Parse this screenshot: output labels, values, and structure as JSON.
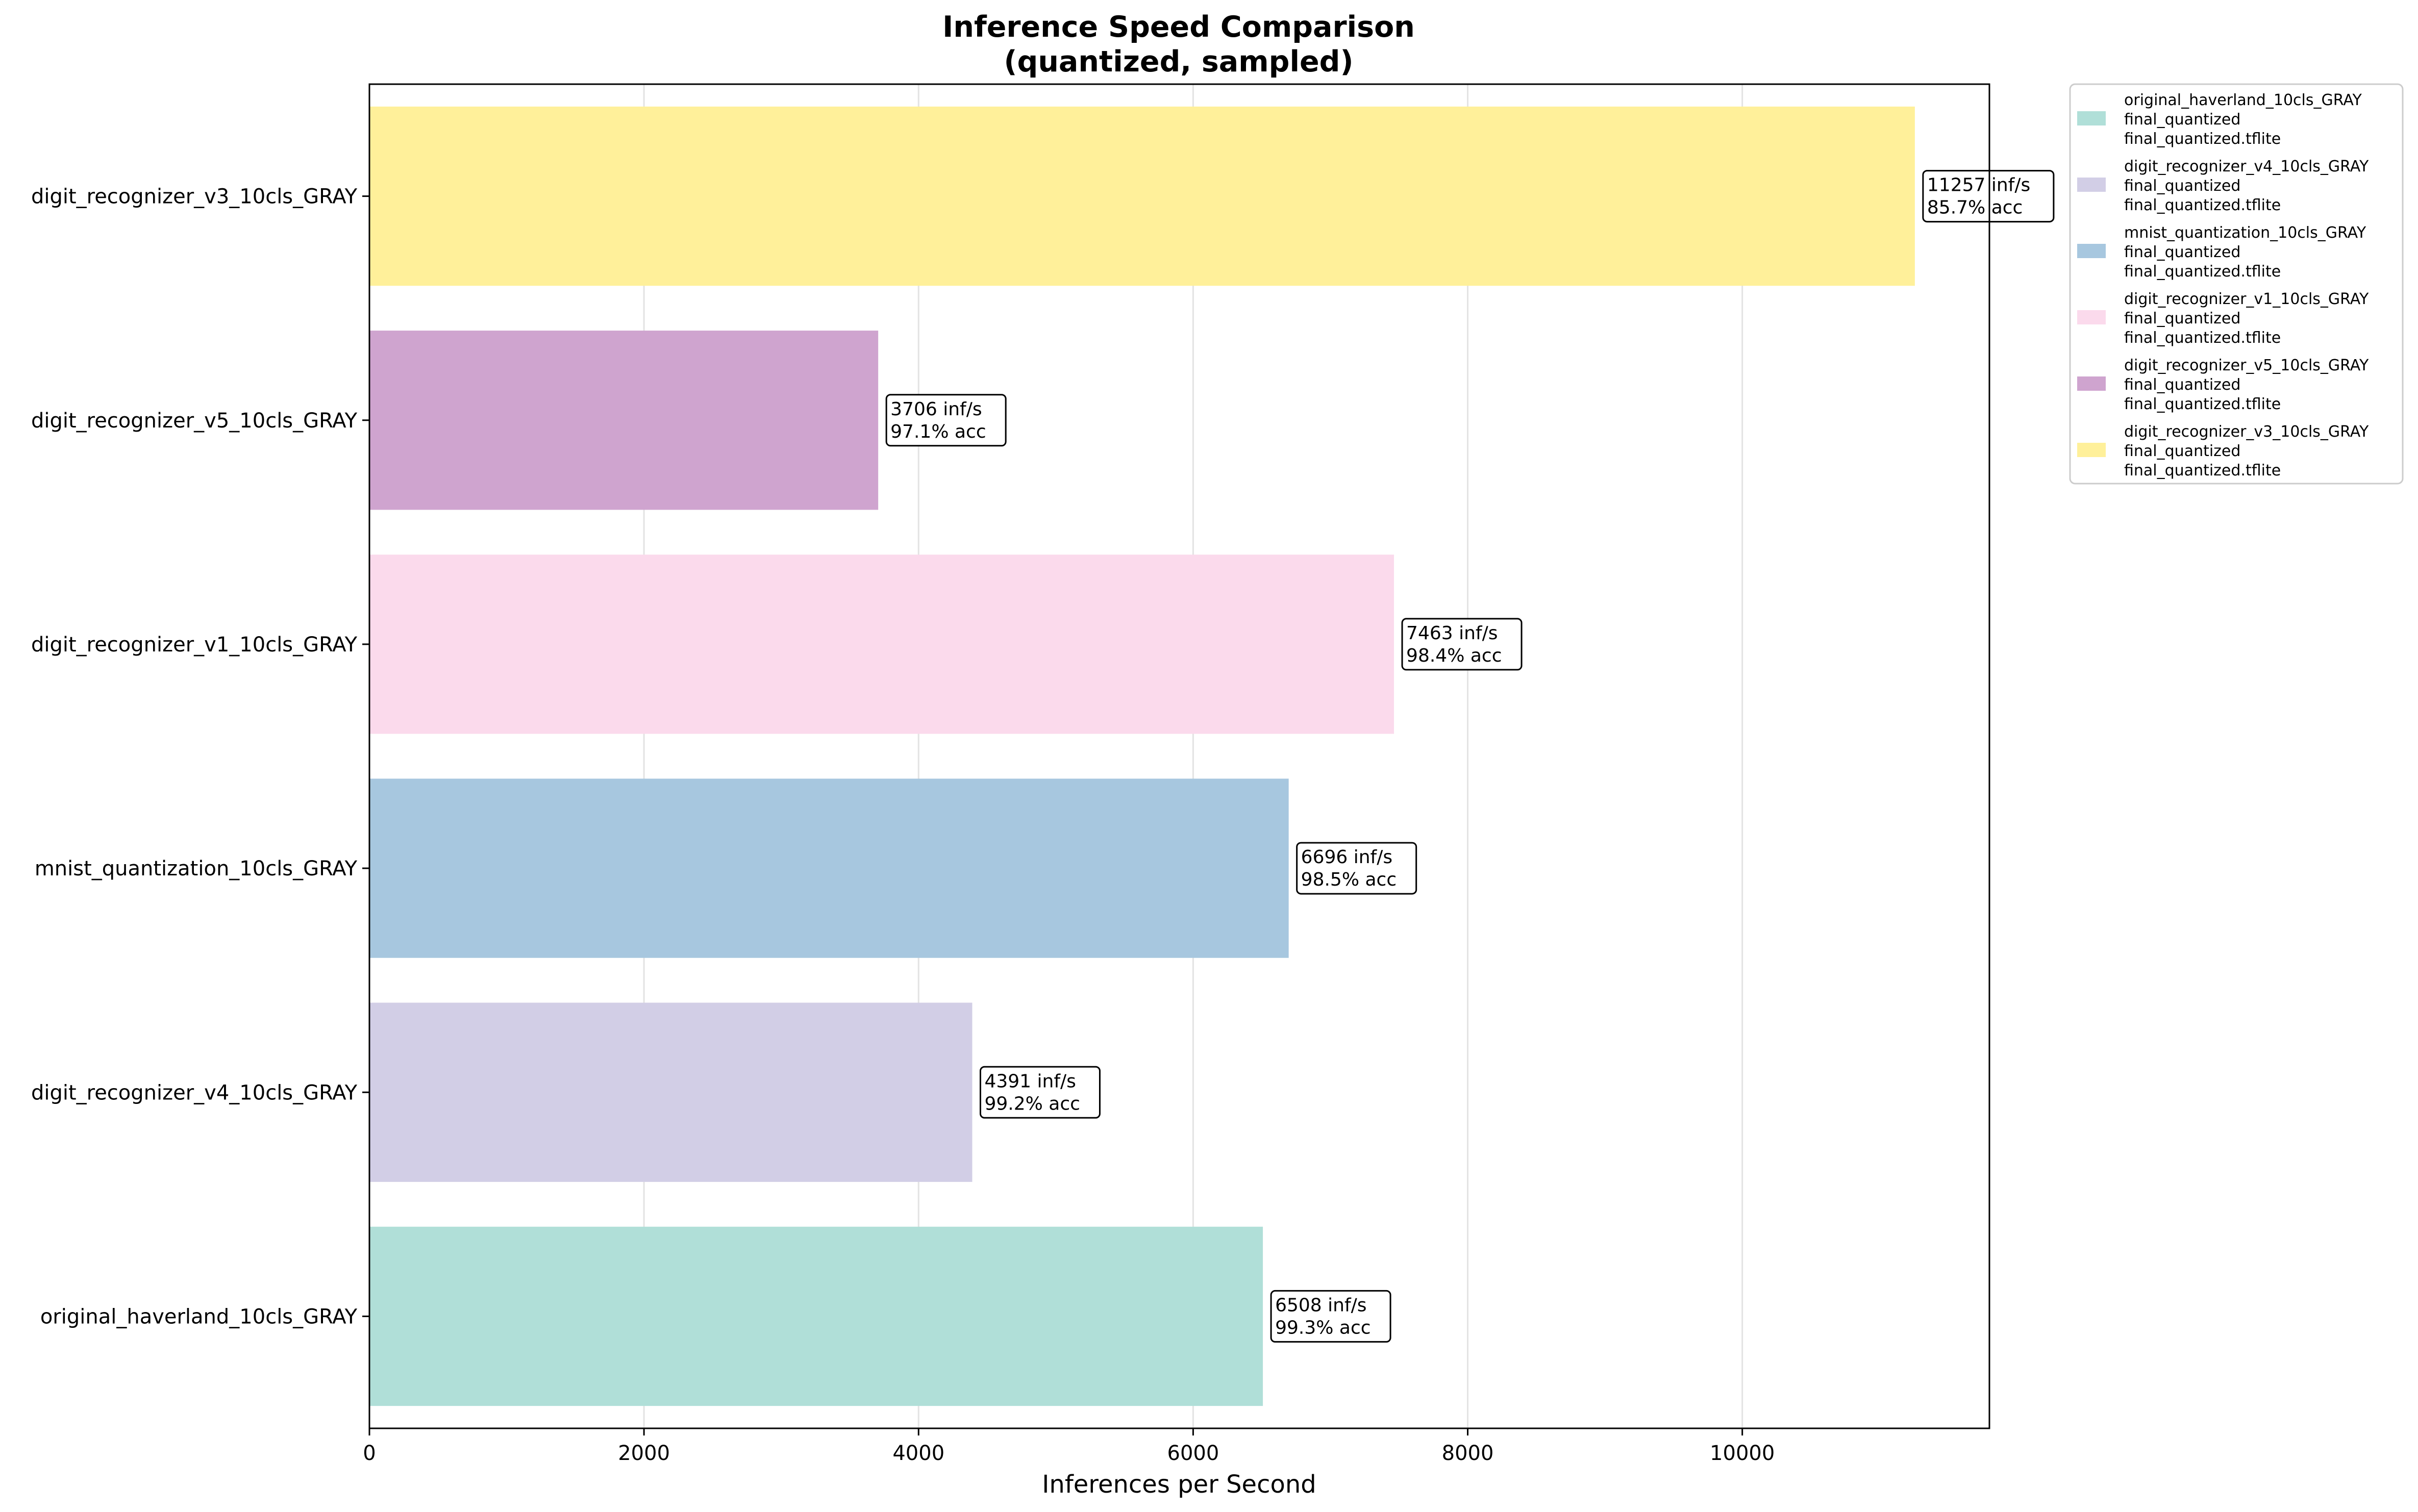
{
  "chart_data": {
    "type": "bar",
    "orientation": "horizontal",
    "title": "Inference Speed Comparison",
    "subtitle": "(quantized, sampled)",
    "xlabel": "Inferences per Second",
    "ylabel": "",
    "xlim": [
      0,
      11800
    ],
    "x_ticks": [
      "0",
      "2000",
      "4000",
      "6000",
      "8000",
      "10000"
    ],
    "grid": "x",
    "legend_position": "outside-top-right",
    "bars": [
      {
        "category": "original_haverland_10cls_GRAY",
        "value": 6508,
        "label_line1": "6508 inf/s",
        "label_line2": "99.3% acc",
        "color": "#b0dfd8"
      },
      {
        "category": "digit_recognizer_v4_10cls_GRAY",
        "value": 4391,
        "label_line1": "4391 inf/s",
        "label_line2": "99.2% acc",
        "color": "#d2cee6"
      },
      {
        "category": "mnist_quantization_10cls_GRAY",
        "value": 6696,
        "label_line1": "6696 inf/s",
        "label_line2": "98.5% acc",
        "color": "#a7c7df"
      },
      {
        "category": "digit_recognizer_v1_10cls_GRAY",
        "value": 7463,
        "label_line1": "7463 inf/s",
        "label_line2": "98.4% acc",
        "color": "#fbdaec"
      },
      {
        "category": "digit_recognizer_v5_10cls_GRAY",
        "value": 3706,
        "label_line1": "3706 inf/s",
        "label_line2": "97.1% acc",
        "color": "#cfa4cf"
      },
      {
        "category": "digit_recognizer_v3_10cls_GRAY",
        "value": 11257,
        "label_line1": "11257 inf/s",
        "label_line2": "85.7% acc",
        "color": "#fff09a"
      }
    ],
    "legend": [
      {
        "line1": "original_haverland_10cls_GRAY",
        "line2": "final_quantized",
        "line3": "final_quantized.tflite",
        "color": "#b0dfd8"
      },
      {
        "line1": "digit_recognizer_v4_10cls_GRAY",
        "line2": "final_quantized",
        "line3": "final_quantized.tflite",
        "color": "#d2cee6"
      },
      {
        "line1": "mnist_quantization_10cls_GRAY",
        "line2": "final_quantized",
        "line3": "final_quantized.tflite",
        "color": "#a7c7df"
      },
      {
        "line1": "digit_recognizer_v1_10cls_GRAY",
        "line2": "final_quantized",
        "line3": "final_quantized.tflite",
        "color": "#fbdaec"
      },
      {
        "line1": "digit_recognizer_v5_10cls_GRAY",
        "line2": "final_quantized",
        "line3": "final_quantized.tflite",
        "color": "#cfa4cf"
      },
      {
        "line1": "digit_recognizer_v3_10cls_GRAY",
        "line2": "final_quantized",
        "line3": "final_quantized.tflite",
        "color": "#fff09a"
      }
    ]
  }
}
